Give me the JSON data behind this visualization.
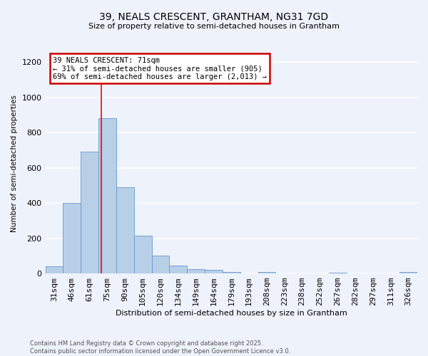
{
  "title1": "39, NEALS CRESCENT, GRANTHAM, NG31 7GD",
  "title2": "Size of property relative to semi-detached houses in Grantham",
  "xlabel": "Distribution of semi-detached houses by size in Grantham",
  "ylabel": "Number of semi-detached properties",
  "categories": [
    "31sqm",
    "46sqm",
    "61sqm",
    "75sqm",
    "90sqm",
    "105sqm",
    "120sqm",
    "134sqm",
    "149sqm",
    "164sqm",
    "179sqm",
    "193sqm",
    "208sqm",
    "223sqm",
    "238sqm",
    "252sqm",
    "267sqm",
    "282sqm",
    "297sqm",
    "311sqm",
    "326sqm"
  ],
  "values": [
    40,
    400,
    690,
    880,
    490,
    215,
    100,
    45,
    25,
    20,
    10,
    0,
    10,
    0,
    0,
    0,
    5,
    0,
    0,
    0,
    10
  ],
  "bar_color": "#b8cfe8",
  "bar_edge_color": "#6699cc",
  "red_line_x": 2.65,
  "annotation_title": "39 NEALS CRESCENT: 71sqm",
  "annotation_line1": "← 31% of semi-detached houses are smaller (905)",
  "annotation_line2": "69% of semi-detached houses are larger (2,013) →",
  "footer1": "Contains HM Land Registry data © Crown copyright and database right 2025.",
  "footer2": "Contains public sector information licensed under the Open Government Licence v3.0.",
  "ylim": [
    0,
    1250
  ],
  "bg_color": "#eef2fb",
  "grid_color": "#ffffff",
  "annotation_box_color": "#ffffff",
  "annotation_box_edge": "#cc0000"
}
